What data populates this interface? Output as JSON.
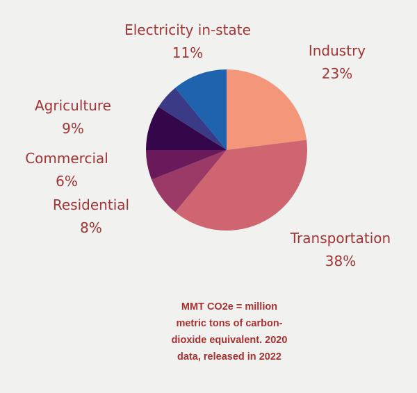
{
  "chart_data": {
    "type": "pie",
    "start_angle": "top, clockwise",
    "slices": [
      {
        "label": "Industry",
        "value": 23,
        "value_label": "23%",
        "color": "#F4967A"
      },
      {
        "label": "Transportation",
        "value": 38,
        "value_label": "38%",
        "color": "#CE6570"
      },
      {
        "label": "Residential",
        "value": 8,
        "value_label": "8%",
        "color": "#9B3A66"
      },
      {
        "label": "Commercial",
        "value": 6,
        "value_label": "6%",
        "color": "#6A1A5A"
      },
      {
        "label": "Agriculture",
        "value": 9,
        "value_label": "9%",
        "color": "#34064A"
      },
      {
        "label": "",
        "value": 5,
        "value_label": "",
        "color": "#3A3A86"
      },
      {
        "label": "Electricity in-state",
        "value": 11,
        "value_label": "11%",
        "color": "#1F63AE"
      }
    ],
    "note": "MMT CO2e = million metric tons of carbon-dioxide equivalent. 2020 data, released in 2022"
  },
  "note_lines": [
    "MMT CO2e = million",
    "metric tons of carbon-",
    "dioxide equivalent. 2020",
    "data, released in 2022"
  ]
}
